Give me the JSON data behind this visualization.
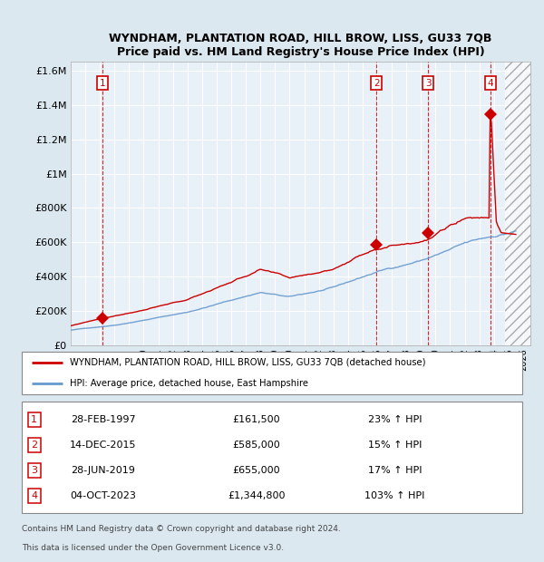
{
  "title": "WYNDHAM, PLANTATION ROAD, HILL BROW, LISS, GU33 7QB",
  "subtitle": "Price paid vs. HM Land Registry's House Price Index (HPI)",
  "legend_line1": "WYNDHAM, PLANTATION ROAD, HILL BROW, LISS, GU33 7QB (detached house)",
  "legend_line2": "HPI: Average price, detached house, East Hampshire",
  "footer1": "Contains HM Land Registry data © Crown copyright and database right 2024.",
  "footer2": "This data is licensed under the Open Government Licence v3.0.",
  "sales": [
    {
      "num": 1,
      "date_str": "28-FEB-1997",
      "date_x": 1997.16,
      "price": 161500,
      "label": "23% ↑ HPI"
    },
    {
      "num": 2,
      "date_str": "14-DEC-2015",
      "date_x": 2015.95,
      "price": 585000,
      "label": "15% ↑ HPI"
    },
    {
      "num": 3,
      "date_str": "28-JUN-2019",
      "date_x": 2019.49,
      "price": 655000,
      "label": "17% ↑ HPI"
    },
    {
      "num": 4,
      "date_str": "04-OCT-2023",
      "date_x": 2023.75,
      "price": 1344800,
      "label": "103% ↑ HPI"
    }
  ],
  "xlim": [
    1995.0,
    2026.5
  ],
  "ylim": [
    0,
    1650000
  ],
  "yticks": [
    0,
    200000,
    400000,
    600000,
    800000,
    1000000,
    1200000,
    1400000,
    1600000
  ],
  "ytick_labels": [
    "£0",
    "£200K",
    "£400K",
    "£600K",
    "£800K",
    "£1M",
    "£1.2M",
    "£1.4M",
    "£1.6M"
  ],
  "bg_color": "#dce8f0",
  "plot_bg": "#e8f0f8",
  "grid_color": "#ffffff",
  "red_line_color": "#cc0000",
  "blue_line_color": "#6699cc",
  "sale_marker_color": "#cc0000",
  "vline_color": "#dd0000",
  "box_color": "#cc0000",
  "future_x": 2024.75
}
